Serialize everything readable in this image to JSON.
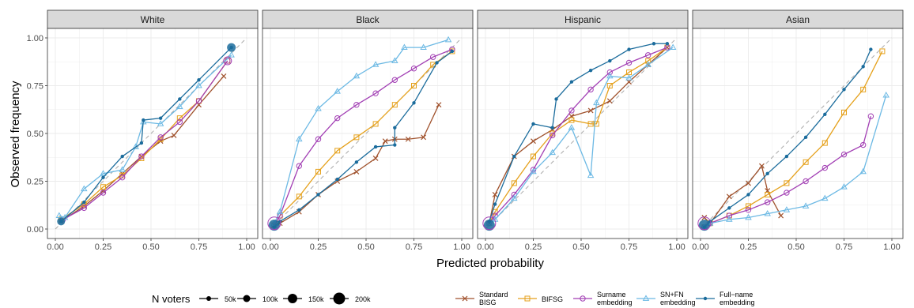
{
  "chart_data": {
    "type": "line",
    "xlabel": "Predicted probability",
    "ylabel": "Observed frequency",
    "xlim": [
      0,
      1
    ],
    "ylim": [
      0,
      1
    ],
    "x_ticks": [
      "0.00",
      "0.25",
      "0.50",
      "0.75",
      "1.00"
    ],
    "y_ticks": [
      "0.00",
      "0.25",
      "0.50",
      "0.75",
      "1.00"
    ],
    "grid": true,
    "reference_line": "y = x (dashed gray)",
    "colors": {
      "standard_bisg": "#a0522d",
      "bifsg": "#e5a11c",
      "surname_embedding": "#a23fb4",
      "snfn_embedding": "#6cb9e4",
      "fullname_embedding": "#1b6c9c",
      "reference": "#aaaaaa",
      "strip_bg": "#d9d9d9"
    },
    "legend": {
      "size_title": "N voters",
      "sizes": [
        {
          "label": "50k",
          "value": 50000
        },
        {
          "label": "100k",
          "value": 100000
        },
        {
          "label": "150k",
          "value": 150000
        },
        {
          "label": "200k",
          "value": 200000
        }
      ],
      "series": [
        {
          "key": "standard_bisg",
          "line1": "Standard",
          "line2": "BISG",
          "marker": "x"
        },
        {
          "key": "bifsg",
          "line1": "BIFSG",
          "line2": "",
          "marker": "square"
        },
        {
          "key": "surname_embedding",
          "line1": "Surname",
          "line2": "embedding",
          "marker": "circle"
        },
        {
          "key": "snfn_embedding",
          "line1": "SN+FN",
          "line2": "embedding",
          "marker": "triangle"
        },
        {
          "key": "fullname_embedding",
          "line1": "Full−name",
          "line2": "embedding",
          "marker": "dot"
        }
      ]
    },
    "panels": [
      {
        "title": "White",
        "series": [
          {
            "key": "standard_bisg",
            "x": [
              0.03,
              0.15,
              0.25,
              0.35,
              0.45,
              0.55,
              0.62,
              0.75,
              0.88
            ],
            "y": [
              0.04,
              0.12,
              0.2,
              0.29,
              0.38,
              0.46,
              0.49,
              0.65,
              0.8
            ]
          },
          {
            "key": "bifsg",
            "x": [
              0.03,
              0.15,
              0.25,
              0.35,
              0.45,
              0.55,
              0.65,
              0.75,
              0.9
            ],
            "y": [
              0.05,
              0.13,
              0.22,
              0.28,
              0.37,
              0.47,
              0.58,
              0.67,
              0.88
            ]
          },
          {
            "key": "surname_embedding",
            "x": [
              0.04,
              0.15,
              0.25,
              0.35,
              0.45,
              0.55,
              0.65,
              0.75,
              0.9
            ],
            "y": [
              0.05,
              0.11,
              0.19,
              0.27,
              0.38,
              0.48,
              0.56,
              0.67,
              0.88
            ]
          },
          {
            "key": "snfn_embedding",
            "x": [
              0.02,
              0.05,
              0.15,
              0.25,
              0.35,
              0.42,
              0.46,
              0.55,
              0.65,
              0.75,
              0.92
            ],
            "y": [
              0.07,
              0.06,
              0.21,
              0.29,
              0.31,
              0.43,
              0.56,
              0.55,
              0.64,
              0.75,
              0.91
            ]
          },
          {
            "key": "fullname_embedding",
            "x": [
              0.03,
              0.15,
              0.25,
              0.35,
              0.45,
              0.46,
              0.55,
              0.65,
              0.75,
              0.92
            ],
            "y": [
              0.04,
              0.14,
              0.27,
              0.38,
              0.45,
              0.57,
              0.58,
              0.68,
              0.78,
              0.95
            ]
          }
        ]
      },
      {
        "title": "Black",
        "series": [
          {
            "key": "standard_bisg",
            "x": [
              0.02,
              0.05,
              0.15,
              0.25,
              0.35,
              0.45,
              0.55,
              0.6,
              0.65,
              0.72,
              0.8,
              0.88
            ],
            "y": [
              0.02,
              0.03,
              0.09,
              0.18,
              0.25,
              0.3,
              0.37,
              0.46,
              0.47,
              0.47,
              0.48,
              0.65
            ]
          },
          {
            "key": "bifsg",
            "x": [
              0.02,
              0.05,
              0.15,
              0.25,
              0.35,
              0.45,
              0.55,
              0.65,
              0.75,
              0.85,
              0.95
            ],
            "y": [
              0.02,
              0.07,
              0.17,
              0.3,
              0.41,
              0.48,
              0.55,
              0.65,
              0.75,
              0.86,
              0.93
            ]
          },
          {
            "key": "surname_embedding",
            "x": [
              0.02,
              0.05,
              0.15,
              0.25,
              0.35,
              0.45,
              0.55,
              0.65,
              0.75,
              0.85,
              0.95
            ],
            "y": [
              0.02,
              0.07,
              0.33,
              0.47,
              0.58,
              0.65,
              0.71,
              0.78,
              0.84,
              0.9,
              0.94
            ]
          },
          {
            "key": "snfn_embedding",
            "x": [
              0.02,
              0.05,
              0.15,
              0.25,
              0.35,
              0.45,
              0.55,
              0.65,
              0.7,
              0.8,
              0.93
            ],
            "y": [
              0.03,
              0.09,
              0.47,
              0.63,
              0.72,
              0.8,
              0.86,
              0.88,
              0.95,
              0.95,
              0.99
            ]
          },
          {
            "key": "fullname_embedding",
            "x": [
              0.02,
              0.05,
              0.15,
              0.25,
              0.35,
              0.45,
              0.55,
              0.65,
              0.65,
              0.75,
              0.87,
              0.95
            ],
            "y": [
              0.01,
              0.04,
              0.1,
              0.18,
              0.26,
              0.35,
              0.43,
              0.44,
              0.53,
              0.66,
              0.87,
              0.93
            ]
          }
        ]
      },
      {
        "title": "Hispanic",
        "series": [
          {
            "key": "standard_bisg",
            "x": [
              0.02,
              0.05,
              0.15,
              0.25,
              0.35,
              0.45,
              0.55,
              0.65,
              0.75,
              0.85,
              0.95
            ],
            "y": [
              0.03,
              0.18,
              0.38,
              0.46,
              0.52,
              0.59,
              0.62,
              0.67,
              0.77,
              0.86,
              0.95
            ]
          },
          {
            "key": "bifsg",
            "x": [
              0.02,
              0.05,
              0.15,
              0.25,
              0.35,
              0.45,
              0.55,
              0.58,
              0.65,
              0.75,
              0.85,
              0.95
            ],
            "y": [
              0.03,
              0.09,
              0.24,
              0.38,
              0.5,
              0.57,
              0.55,
              0.55,
              0.75,
              0.82,
              0.88,
              0.95
            ]
          },
          {
            "key": "surname_embedding",
            "x": [
              0.02,
              0.05,
              0.15,
              0.25,
              0.35,
              0.45,
              0.55,
              0.65,
              0.75,
              0.85,
              0.95
            ],
            "y": [
              0.03,
              0.07,
              0.18,
              0.31,
              0.49,
              0.62,
              0.73,
              0.82,
              0.87,
              0.91,
              0.95
            ]
          },
          {
            "key": "snfn_embedding",
            "x": [
              0.02,
              0.05,
              0.15,
              0.25,
              0.35,
              0.45,
              0.55,
              0.58,
              0.65,
              0.75,
              0.85,
              0.98
            ],
            "y": [
              0.03,
              0.05,
              0.16,
              0.3,
              0.4,
              0.53,
              0.28,
              0.66,
              0.8,
              0.79,
              0.86,
              0.95
            ]
          },
          {
            "key": "fullname_embedding",
            "x": [
              0.02,
              0.05,
              0.15,
              0.25,
              0.35,
              0.37,
              0.45,
              0.55,
              0.65,
              0.75,
              0.88,
              0.95
            ],
            "y": [
              0.04,
              0.13,
              0.38,
              0.55,
              0.53,
              0.68,
              0.77,
              0.83,
              0.88,
              0.94,
              0.97,
              0.97
            ]
          }
        ]
      },
      {
        "title": "Asian",
        "series": [
          {
            "key": "standard_bisg",
            "x": [
              0.02,
              0.05,
              0.15,
              0.25,
              0.32,
              0.35,
              0.42
            ],
            "y": [
              0.06,
              0.03,
              0.17,
              0.24,
              0.33,
              0.2,
              0.07
            ]
          },
          {
            "key": "bifsg",
            "x": [
              0.02,
              0.05,
              0.15,
              0.25,
              0.35,
              0.45,
              0.55,
              0.65,
              0.75,
              0.85,
              0.95
            ],
            "y": [
              0.01,
              0.03,
              0.07,
              0.12,
              0.18,
              0.24,
              0.35,
              0.45,
              0.61,
              0.73,
              0.93
            ]
          },
          {
            "key": "surname_embedding",
            "x": [
              0.02,
              0.05,
              0.15,
              0.25,
              0.35,
              0.45,
              0.55,
              0.65,
              0.75,
              0.85,
              0.89
            ],
            "y": [
              0.01,
              0.03,
              0.07,
              0.1,
              0.14,
              0.19,
              0.25,
              0.32,
              0.39,
              0.44,
              0.59
            ]
          },
          {
            "key": "snfn_embedding",
            "x": [
              0.02,
              0.05,
              0.15,
              0.25,
              0.35,
              0.45,
              0.55,
              0.65,
              0.75,
              0.85,
              0.97
            ],
            "y": [
              0.01,
              0.03,
              0.05,
              0.06,
              0.08,
              0.1,
              0.12,
              0.16,
              0.22,
              0.3,
              0.7
            ]
          },
          {
            "key": "fullname_embedding",
            "x": [
              0.02,
              0.05,
              0.15,
              0.25,
              0.35,
              0.45,
              0.55,
              0.65,
              0.75,
              0.85,
              0.89
            ],
            "y": [
              0.01,
              0.04,
              0.11,
              0.18,
              0.29,
              0.38,
              0.48,
              0.6,
              0.73,
              0.85,
              0.94
            ]
          }
        ]
      }
    ]
  }
}
